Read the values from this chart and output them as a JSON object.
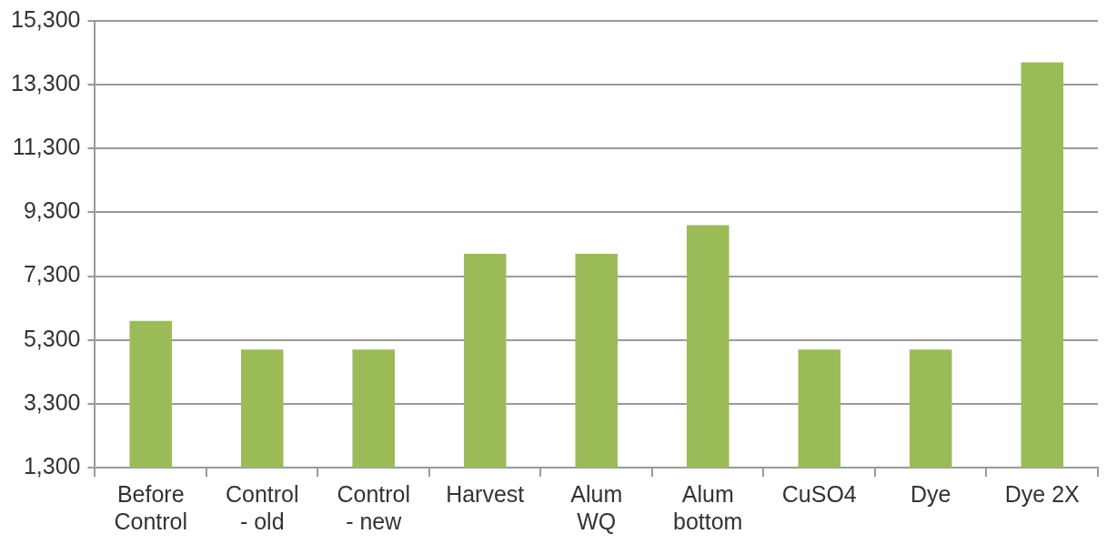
{
  "chart_data": {
    "type": "bar",
    "categories": [
      "Before Control",
      "Control - old",
      "Control - new",
      "Harvest",
      "Alum WQ",
      "Alum bottom",
      "CuSO4",
      "Dye",
      "Dye 2X"
    ],
    "values": [
      5900,
      5000,
      5000,
      8000,
      8000,
      8900,
      5000,
      5000,
      14000
    ],
    "color": "#9bbb59",
    "ylim": [
      1300,
      15300
    ],
    "yticks": [
      {
        "value": 1300,
        "label": "1,300"
      },
      {
        "value": 3300,
        "label": "3,300"
      },
      {
        "value": 5300,
        "label": "5,300"
      },
      {
        "value": 7300,
        "label": "7,300"
      },
      {
        "value": 9300,
        "label": "9,300"
      },
      {
        "value": 11300,
        "label": "11,300"
      },
      {
        "value": 13300,
        "label": "13,300"
      },
      {
        "value": 15300,
        "label": "15,300"
      }
    ],
    "grid": "y",
    "legend": false
  }
}
